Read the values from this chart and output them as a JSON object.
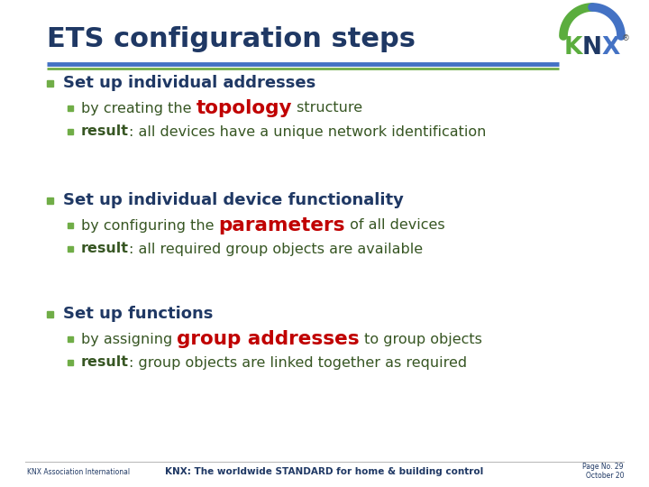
{
  "title": "ETS configuration steps",
  "title_color": "#1F3864",
  "title_fontsize": 22,
  "bg_color": "#FFFFFF",
  "bullet_color": "#70AD47",
  "dark_green": "#375623",
  "dark_blue": "#1F3864",
  "red": "#C00000",
  "sections": [
    {
      "header": "Set up individual addresses",
      "sub": [
        {
          "parts": [
            {
              "text": "by creating the ",
              "color": "#375623",
              "bold": false,
              "large": false
            },
            {
              "text": "topology",
              "color": "#C00000",
              "bold": true,
              "large": true
            },
            {
              "text": " structure",
              "color": "#375623",
              "bold": false,
              "large": false
            }
          ]
        },
        {
          "parts": [
            {
              "text": "result",
              "color": "#375623",
              "bold": true,
              "large": false
            },
            {
              "text": ": all devices have a unique network identification",
              "color": "#375623",
              "bold": false,
              "large": false
            }
          ]
        }
      ]
    },
    {
      "header": "Set up individual device functionality",
      "sub": [
        {
          "parts": [
            {
              "text": "by configuring the ",
              "color": "#375623",
              "bold": false,
              "large": false
            },
            {
              "text": "parameters",
              "color": "#C00000",
              "bold": true,
              "large": true
            },
            {
              "text": " of all devices",
              "color": "#375623",
              "bold": false,
              "large": false
            }
          ]
        },
        {
          "parts": [
            {
              "text": "result",
              "color": "#375623",
              "bold": true,
              "large": false
            },
            {
              "text": ": all required group objects are available",
              "color": "#375623",
              "bold": false,
              "large": false
            }
          ]
        }
      ]
    },
    {
      "header": "Set up functions",
      "sub": [
        {
          "parts": [
            {
              "text": "by assigning ",
              "color": "#375623",
              "bold": false,
              "large": false
            },
            {
              "text": "group addresses",
              "color": "#C00000",
              "bold": true,
              "large": true
            },
            {
              "text": " to group objects",
              "color": "#375623",
              "bold": false,
              "large": false
            }
          ]
        },
        {
          "parts": [
            {
              "text": "result",
              "color": "#375623",
              "bold": true,
              "large": false
            },
            {
              "text": ": group objects are linked together as required",
              "color": "#375623",
              "bold": false,
              "large": false
            }
          ]
        }
      ]
    }
  ],
  "footer_left": "KNX Association International",
  "footer_center": "KNX: The worldwide STANDARD for home & building control",
  "footer_right_1": "Page No. 29",
  "footer_right_2": "October 20",
  "footer_color": "#1F3864",
  "separator_blue": "#4472C4",
  "separator_green": "#70AD47"
}
